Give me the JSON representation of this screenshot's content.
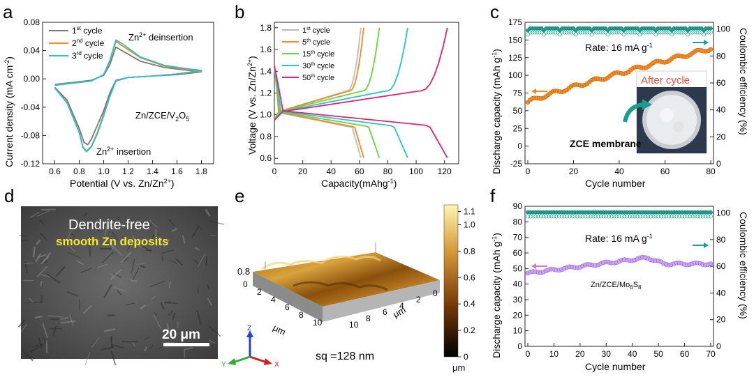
{
  "panels": {
    "a": {
      "label": "a",
      "chart_data": {
        "type": "line",
        "title": "",
        "xlabel": "Potential (V vs. Zn/Zn2+)",
        "ylabel": "Current density (mA cm-2)",
        "xlim": [
          0.5,
          1.9
        ],
        "ylim": [
          -0.12,
          0.08
        ],
        "xticks": [
          "0.6",
          "0.8",
          "1.0",
          "1.2",
          "1.4",
          "1.6",
          "1.8"
        ],
        "yticks": [
          "0.08",
          "0.04",
          "0.00",
          "-0.04",
          "-0.08",
          "-0.12"
        ],
        "annotations": {
          "deinsertion": "Zn2+ deinsertion",
          "insertion": "Zn2+ insertion",
          "system": "Zn/ZCE/V2O5"
        },
        "series": [
          {
            "name": "1st cycle",
            "color": "#777777",
            "oxidation": [
              [
                0.6,
                -0.008
              ],
              [
                0.9,
                -0.002
              ],
              [
                1.0,
                0.005
              ],
              [
                1.05,
                0.02
              ],
              [
                1.1,
                0.045
              ],
              [
                1.15,
                0.04
              ],
              [
                1.3,
                0.025
              ],
              [
                1.5,
                0.016
              ],
              [
                1.7,
                0.012
              ],
              [
                1.8,
                0.01
              ]
            ],
            "reduction": [
              [
                1.8,
                0.01
              ],
              [
                1.6,
                0.006
              ],
              [
                1.4,
                0.004
              ],
              [
                1.2,
                0.002
              ],
              [
                1.1,
                -0.002
              ],
              [
                1.05,
                -0.02
              ],
              [
                1.0,
                -0.045
              ],
              [
                0.95,
                -0.065
              ],
              [
                0.9,
                -0.085
              ],
              [
                0.87,
                -0.093
              ],
              [
                0.84,
                -0.09
              ],
              [
                0.8,
                -0.07
              ],
              [
                0.7,
                -0.03
              ],
              [
                0.6,
                -0.012
              ]
            ]
          },
          {
            "name": "2nd cycle",
            "color": "#f08a24",
            "oxidation": [
              [
                0.6,
                -0.009
              ],
              [
                0.9,
                -0.003
              ],
              [
                1.0,
                0.006
              ],
              [
                1.05,
                0.025
              ],
              [
                1.1,
                0.053
              ],
              [
                1.15,
                0.047
              ],
              [
                1.3,
                0.03
              ],
              [
                1.5,
                0.018
              ],
              [
                1.7,
                0.013
              ],
              [
                1.8,
                0.011
              ]
            ],
            "reduction": [
              [
                1.8,
                0.011
              ],
              [
                1.6,
                0.007
              ],
              [
                1.4,
                0.004
              ],
              [
                1.2,
                0.002
              ],
              [
                1.1,
                -0.003
              ],
              [
                1.05,
                -0.025
              ],
              [
                1.0,
                -0.05
              ],
              [
                0.95,
                -0.075
              ],
              [
                0.9,
                -0.095
              ],
              [
                0.86,
                -0.102
              ],
              [
                0.83,
                -0.096
              ],
              [
                0.8,
                -0.075
              ],
              [
                0.7,
                -0.033
              ],
              [
                0.6,
                -0.013
              ]
            ]
          },
          {
            "name": "3rd cycle",
            "color": "#29c0d0",
            "oxidation": [
              [
                0.6,
                -0.009
              ],
              [
                0.9,
                -0.003
              ],
              [
                1.0,
                0.006
              ],
              [
                1.05,
                0.026
              ],
              [
                1.1,
                0.055
              ],
              [
                1.15,
                0.05
              ],
              [
                1.3,
                0.031
              ],
              [
                1.5,
                0.019
              ],
              [
                1.7,
                0.014
              ],
              [
                1.8,
                0.012
              ]
            ],
            "reduction": [
              [
                1.8,
                0.012
              ],
              [
                1.6,
                0.007
              ],
              [
                1.4,
                0.004
              ],
              [
                1.2,
                0.002
              ],
              [
                1.1,
                -0.003
              ],
              [
                1.05,
                -0.025
              ],
              [
                1.0,
                -0.052
              ],
              [
                0.95,
                -0.077
              ],
              [
                0.9,
                -0.096
              ],
              [
                0.86,
                -0.103
              ],
              [
                0.83,
                -0.097
              ],
              [
                0.8,
                -0.076
              ],
              [
                0.7,
                -0.034
              ],
              [
                0.6,
                -0.013
              ]
            ]
          }
        ]
      }
    },
    "b": {
      "label": "b",
      "chart_data": {
        "type": "line",
        "xlabel": "Capacity(mAhg-1)",
        "ylabel": "Voltage (V vs. Zn/Zn2+)",
        "xlim": [
          0,
          130
        ],
        "ylim": [
          0.55,
          1.85
        ],
        "xticks": [
          "0",
          "20",
          "40",
          "60",
          "80",
          "100",
          "120"
        ],
        "yticks": [
          "1.8",
          "1.6",
          "1.4",
          "1.2",
          "1.0",
          "0.8",
          "0.6"
        ],
        "series": [
          {
            "name": "1st cycle",
            "color": "#bbbbbb",
            "capacity": 61
          },
          {
            "name": "5th cycle",
            "color": "#f08a24",
            "capacity": 63
          },
          {
            "name": "15th cycle",
            "color": "#6cd23c",
            "capacity": 74
          },
          {
            "name": "30th cycle",
            "color": "#29c0d0",
            "capacity": 94
          },
          {
            "name": "50th cycle",
            "color": "#e0236e",
            "capacity": 122
          }
        ]
      }
    },
    "c": {
      "label": "c",
      "chart_data": {
        "type": "scatter",
        "xlabel": "Cycle number",
        "ylabel": "Discharge capacity (mAh g-1)",
        "y2label": "Coulombic efficiency (%)",
        "xlim": [
          0,
          80
        ],
        "ylim": [
          -25,
          175
        ],
        "y2lim": [
          0,
          105
        ],
        "xticks": [
          "0",
          "20",
          "40",
          "60",
          "80"
        ],
        "yticks": [
          "175",
          "150",
          "125",
          "100",
          "75",
          "50",
          "25",
          "0",
          "-25"
        ],
        "y2ticks": [
          "100",
          "80",
          "60",
          "40",
          "20",
          "0"
        ],
        "rate": "Rate: 16 mA g-1",
        "capacity_start": 62,
        "capacity_end": 138,
        "efficiency": 100,
        "inset_title": "After cycle",
        "inset_label": "ZCE membrane"
      }
    },
    "d": {
      "label": "d",
      "title1": "Dendrite-free",
      "title2": "smooth Zn deposits",
      "scalebar": "20 μm"
    },
    "e": {
      "label": "e",
      "zlabel": "0.8",
      "sq": "sq =128 nm",
      "unit": "μm",
      "xaxis": [
        "0",
        "2",
        "4",
        "6",
        "8",
        "10"
      ],
      "yaxis": [
        "10",
        "8",
        "6",
        "4",
        "2",
        "0"
      ],
      "axis_unit": "μm",
      "colorbar_ticks": [
        "1.1",
        "1.0",
        "0.8",
        "0.6",
        "0.4",
        "0.2",
        "0"
      ],
      "triad": {
        "z": "Z",
        "y": "Y",
        "x": "X"
      }
    },
    "f": {
      "label": "f",
      "chart_data": {
        "type": "scatter",
        "xlabel": "Cycle number",
        "ylabel": "Discharge capacity (mAh g-1)",
        "y2label": "Coulombic efficiency (%)",
        "xlim": [
          0,
          70
        ],
        "ylim": [
          0,
          90
        ],
        "y2lim": [
          0,
          105
        ],
        "xticks": [
          "0",
          "10",
          "20",
          "30",
          "40",
          "50",
          "60",
          "70"
        ],
        "yticks": [
          "90",
          "80",
          "70",
          "60",
          "50",
          "40",
          "30",
          "20",
          "10",
          "0"
        ],
        "y2ticks": [
          "100",
          "80",
          "60",
          "40",
          "20",
          "0"
        ],
        "rate": "Rate: 16 mA g-1",
        "system": "Zn/ZCE/Mo6S8",
        "capacity_start": 47,
        "capacity_peak": 57,
        "capacity_end": 53,
        "efficiency": 100
      }
    }
  },
  "colors": {
    "teal": "#1a9e8f",
    "orange": "#f08a24",
    "purple": "#c07ae8",
    "lightpurple": "#b98df0"
  }
}
